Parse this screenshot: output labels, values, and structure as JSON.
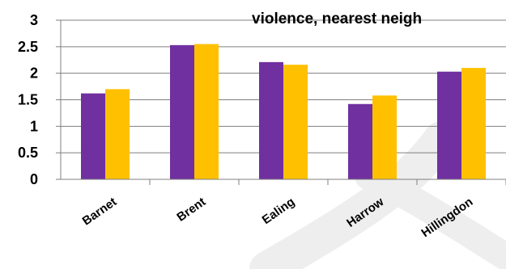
{
  "chart_data": {
    "type": "bar",
    "title": "violence, nearest neigh",
    "categories": [
      "Barnet",
      "Brent",
      "Ealing",
      "Harrow",
      "Hillingdon"
    ],
    "series": [
      {
        "values": [
          1.62,
          2.53,
          2.21,
          1.42,
          2.03
        ],
        "color": "#7030A0"
      },
      {
        "values": [
          1.7,
          2.55,
          2.16,
          1.58,
          2.1
        ],
        "color": "#FFC000"
      }
    ],
    "y_ticks": [
      "0",
      "0.5",
      "1",
      "1.5",
      "2",
      "2.5",
      "3"
    ],
    "ylim": [
      0,
      3
    ],
    "grid": true,
    "colors": {
      "grid": "#7f7f7f",
      "watermark": "#eeeeee"
    }
  }
}
